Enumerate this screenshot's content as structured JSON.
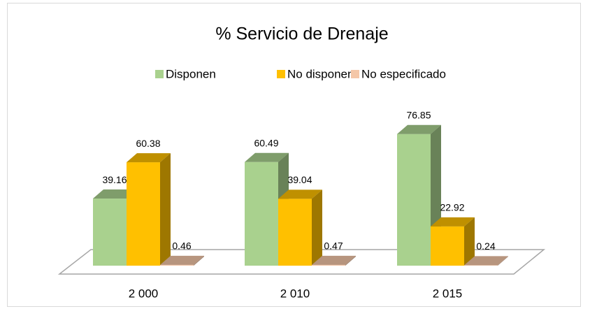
{
  "chart_data": {
    "type": "bar3d",
    "title": "% Servicio de Drenaje",
    "categories": [
      "2 000",
      "2 010",
      "2 015"
    ],
    "series": [
      {
        "name": "Disponen",
        "color": "#a9d18e",
        "values": [
          39.16,
          60.49,
          76.85
        ]
      },
      {
        "name": "No disponen",
        "color": "#ffc000",
        "values": [
          60.38,
          39.04,
          22.92
        ]
      },
      {
        "name": "No especificado",
        "color": "#f4c7a8",
        "values": [
          0.46,
          0.47,
          0.24
        ]
      }
    ],
    "legend": "top"
  }
}
